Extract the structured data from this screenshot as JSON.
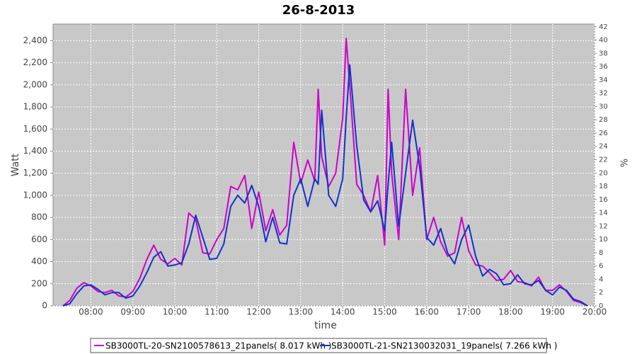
{
  "chart_data": {
    "type": "line",
    "title": "26-8-2013",
    "ylabel": "Watt",
    "y2label": "%",
    "xlabel": "time",
    "x": [
      "07:20",
      "07:30",
      "07:40",
      "07:50",
      "08:00",
      "08:10",
      "08:20",
      "08:30",
      "08:40",
      "08:50",
      "09:00",
      "09:10",
      "09:20",
      "09:30",
      "09:40",
      "09:50",
      "10:00",
      "10:10",
      "10:20",
      "10:30",
      "10:40",
      "10:50",
      "11:00",
      "11:10",
      "11:20",
      "11:30",
      "11:40",
      "11:50",
      "12:00",
      "12:10",
      "12:20",
      "12:30",
      "12:40",
      "12:50",
      "13:00",
      "13:10",
      "13:20",
      "13:25",
      "13:30",
      "13:40",
      "13:50",
      "14:00",
      "14:05",
      "14:10",
      "14:20",
      "14:30",
      "14:40",
      "14:50",
      "15:00",
      "15:05",
      "15:10",
      "15:20",
      "15:30",
      "15:40",
      "15:50",
      "16:00",
      "16:10",
      "16:20",
      "16:30",
      "16:40",
      "16:50",
      "17:00",
      "17:10",
      "17:20",
      "17:30",
      "17:40",
      "17:50",
      "18:00",
      "18:10",
      "18:20",
      "18:30",
      "18:40",
      "18:50",
      "19:00",
      "19:10",
      "19:20",
      "19:30",
      "19:40",
      "19:50"
    ],
    "series": [
      {
        "name": "SB3000TL-20-SN2100578613_21panels( 8.017 kWh )",
        "color": "#cc00cc",
        "values": [
          0,
          50,
          160,
          210,
          180,
          130,
          120,
          140,
          90,
          80,
          130,
          250,
          420,
          550,
          420,
          380,
          430,
          370,
          840,
          780,
          480,
          470,
          600,
          700,
          1080,
          1050,
          1180,
          700,
          1030,
          680,
          870,
          640,
          730,
          1480,
          1110,
          1320,
          1130,
          1960,
          1350,
          1080,
          1200,
          1700,
          2420,
          2000,
          1100,
          1000,
          850,
          1180,
          550,
          1960,
          1200,
          600,
          1960,
          1000,
          1430,
          600,
          800,
          580,
          450,
          480,
          800,
          500,
          370,
          360,
          300,
          230,
          240,
          320,
          220,
          210,
          180,
          260,
          140,
          140,
          190,
          130,
          50,
          30,
          0
        ]
      },
      {
        "name": "SB3000TL-21-SN2130032031_19panels( 7.266 kWh )",
        "color": "#1133cc",
        "values": [
          0,
          20,
          110,
          180,
          190,
          150,
          100,
          120,
          120,
          70,
          90,
          180,
          300,
          440,
          490,
          360,
          370,
          390,
          560,
          820,
          620,
          420,
          430,
          560,
          900,
          1000,
          930,
          1090,
          900,
          580,
          800,
          570,
          560,
          1000,
          1150,
          900,
          1150,
          1100,
          1770,
          1000,
          900,
          1150,
          1700,
          2180,
          1450,
          960,
          850,
          950,
          680,
          1100,
          1480,
          720,
          1200,
          1680,
          1260,
          620,
          550,
          700,
          480,
          380,
          600,
          730,
          450,
          270,
          330,
          290,
          190,
          200,
          280,
          200,
          190,
          230,
          140,
          100,
          170,
          140,
          60,
          40,
          0
        ]
      }
    ],
    "xlim": [
      "07:06",
      "20:00"
    ],
    "xticks": [
      "08:00",
      "09:00",
      "10:00",
      "11:00",
      "12:00",
      "13:00",
      "14:00",
      "15:00",
      "16:00",
      "17:00",
      "18:00",
      "19:00",
      "20:00"
    ],
    "ylim": [
      0,
      2550
    ],
    "yticks": [
      0,
      200,
      400,
      600,
      800,
      {
        "value": 1000,
        "label": "1,000"
      },
      {
        "value": 1200,
        "label": "1,200"
      },
      {
        "value": 1400,
        "label": "1,400"
      },
      {
        "value": 1600,
        "label": "1,600"
      },
      {
        "value": 1800,
        "label": "1,800"
      },
      {
        "value": 2000,
        "label": "2,000"
      },
      {
        "value": 2200,
        "label": "2,200"
      },
      {
        "value": 2400,
        "label": "2,400"
      }
    ],
    "y2lim": [
      0,
      42.4
    ],
    "y2ticks": [
      0,
      2,
      4,
      6,
      8,
      10,
      12,
      14,
      16,
      18,
      20,
      22,
      24,
      26,
      28,
      30,
      32,
      34,
      36,
      38,
      40,
      42
    ],
    "grid": true
  }
}
